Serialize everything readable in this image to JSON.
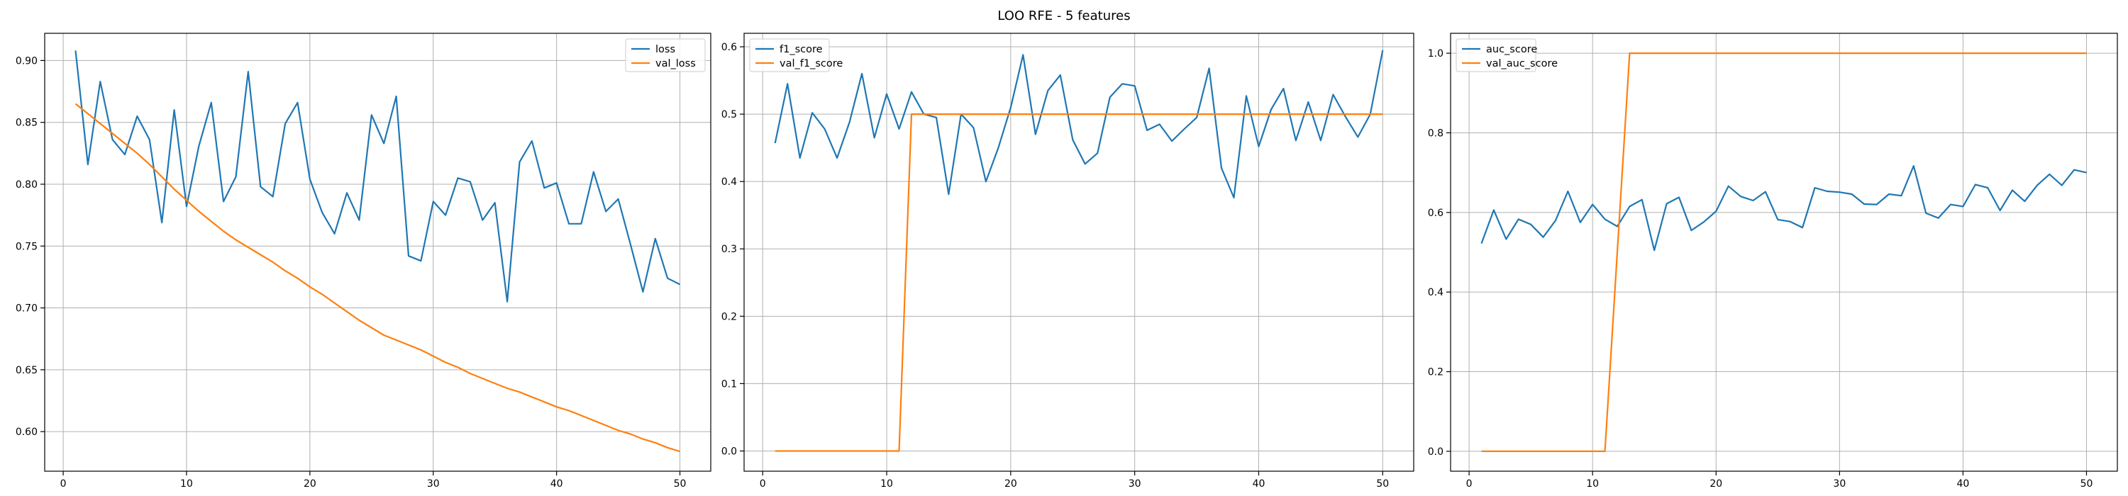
{
  "figure_title": "LOO RFE - 5 features",
  "colors": {
    "series_1": "#1f77b4",
    "series_2": "#ff7f0e",
    "grid": "#b0b0b0",
    "axes": "#000000"
  },
  "chart_data": [
    {
      "type": "line",
      "title": "",
      "xlabel": "",
      "ylabel": "",
      "grid": true,
      "legend": "top-right",
      "xlim": [
        -1.5,
        52.5
      ],
      "ylim": [
        0.568,
        0.922
      ],
      "xticks": [
        0,
        10,
        20,
        30,
        40,
        50
      ],
      "yticks": [
        0.6,
        0.65,
        0.7,
        0.75,
        0.8,
        0.85,
        0.9
      ],
      "ytick_labels": [
        "0.60",
        "0.65",
        "0.70",
        "0.75",
        "0.80",
        "0.85",
        "0.90"
      ],
      "x": [
        1,
        2,
        3,
        4,
        5,
        6,
        7,
        8,
        9,
        10,
        11,
        12,
        13,
        14,
        15,
        16,
        17,
        18,
        19,
        20,
        21,
        22,
        23,
        24,
        25,
        26,
        27,
        28,
        29,
        30,
        31,
        32,
        33,
        34,
        35,
        36,
        37,
        38,
        39,
        40,
        41,
        42,
        43,
        44,
        45,
        46,
        47,
        48,
        49,
        50
      ],
      "series": [
        {
          "name": "loss",
          "color": "#1f77b4",
          "values": [
            0.908,
            0.816,
            0.883,
            0.836,
            0.824,
            0.855,
            0.836,
            0.769,
            0.86,
            0.782,
            0.831,
            0.866,
            0.786,
            0.806,
            0.891,
            0.798,
            0.79,
            0.849,
            0.866,
            0.804,
            0.777,
            0.76,
            0.793,
            0.771,
            0.856,
            0.833,
            0.871,
            0.742,
            0.738,
            0.786,
            0.775,
            0.805,
            0.802,
            0.771,
            0.785,
            0.705,
            0.818,
            0.835,
            0.797,
            0.801,
            0.768,
            0.768,
            0.81,
            0.778,
            0.788,
            0.751,
            0.713,
            0.756,
            0.724,
            0.719
          ]
        },
        {
          "name": "val_loss",
          "color": "#ff7f0e",
          "values": [
            0.865,
            0.857,
            0.849,
            0.841,
            0.833,
            0.825,
            0.816,
            0.806,
            0.796,
            0.787,
            0.778,
            0.77,
            0.762,
            0.755,
            0.749,
            0.743,
            0.737,
            0.73,
            0.724,
            0.717,
            0.711,
            0.704,
            0.697,
            0.69,
            0.684,
            0.678,
            0.674,
            0.67,
            0.666,
            0.661,
            0.656,
            0.652,
            0.647,
            0.643,
            0.639,
            0.635,
            0.632,
            0.628,
            0.624,
            0.62,
            0.617,
            0.613,
            0.609,
            0.605,
            0.601,
            0.598,
            0.594,
            0.591,
            0.587,
            0.584
          ]
        }
      ]
    },
    {
      "type": "line",
      "title": "",
      "xlabel": "",
      "ylabel": "",
      "grid": true,
      "legend": "top-left",
      "xlim": [
        -1.5,
        52.5
      ],
      "ylim": [
        -0.03,
        0.62
      ],
      "xticks": [
        0,
        10,
        20,
        30,
        40,
        50
      ],
      "yticks": [
        0.0,
        0.1,
        0.2,
        0.3,
        0.4,
        0.5,
        0.6
      ],
      "ytick_labels": [
        "0.0",
        "0.1",
        "0.2",
        "0.3",
        "0.4",
        "0.5",
        "0.6"
      ],
      "x": [
        1,
        2,
        3,
        4,
        5,
        6,
        7,
        8,
        9,
        10,
        11,
        12,
        13,
        14,
        15,
        16,
        17,
        18,
        19,
        20,
        21,
        22,
        23,
        24,
        25,
        26,
        27,
        28,
        29,
        30,
        31,
        32,
        33,
        34,
        35,
        36,
        37,
        38,
        39,
        40,
        41,
        42,
        43,
        44,
        45,
        46,
        47,
        48,
        49,
        50
      ],
      "series": [
        {
          "name": "f1_score",
          "color": "#1f77b4",
          "values": [
            0.457,
            0.545,
            0.435,
            0.502,
            0.478,
            0.435,
            0.488,
            0.56,
            0.465,
            0.53,
            0.478,
            0.533,
            0.5,
            0.495,
            0.381,
            0.5,
            0.48,
            0.4,
            0.45,
            0.51,
            0.588,
            0.47,
            0.535,
            0.558,
            0.462,
            0.426,
            0.442,
            0.525,
            0.545,
            0.542,
            0.476,
            0.485,
            0.46,
            0.478,
            0.495,
            0.568,
            0.42,
            0.376,
            0.527,
            0.452,
            0.507,
            0.538,
            0.461,
            0.518,
            0.461,
            0.529,
            0.496,
            0.466,
            0.5,
            0.595
          ]
        },
        {
          "name": "val_f1_score",
          "color": "#ff7f0e",
          "values": [
            0,
            0,
            0,
            0,
            0,
            0,
            0,
            0,
            0,
            0,
            0,
            0.5,
            0.5,
            0.5,
            0.5,
            0.5,
            0.5,
            0.5,
            0.5,
            0.5,
            0.5,
            0.5,
            0.5,
            0.5,
            0.5,
            0.5,
            0.5,
            0.5,
            0.5,
            0.5,
            0.5,
            0.5,
            0.5,
            0.5,
            0.5,
            0.5,
            0.5,
            0.5,
            0.5,
            0.5,
            0.5,
            0.5,
            0.5,
            0.5,
            0.5,
            0.5,
            0.5,
            0.5,
            0.5,
            0.5
          ]
        }
      ]
    },
    {
      "type": "line",
      "title": "",
      "xlabel": "",
      "ylabel": "",
      "grid": true,
      "legend": "top-left",
      "xlim": [
        -1.5,
        52.5
      ],
      "ylim": [
        -0.05,
        1.05
      ],
      "xticks": [
        0,
        10,
        20,
        30,
        40,
        50
      ],
      "yticks": [
        0.0,
        0.2,
        0.4,
        0.6,
        0.8,
        1.0
      ],
      "ytick_labels": [
        "0.0",
        "0.2",
        "0.4",
        "0.6",
        "0.8",
        "1.0"
      ],
      "x": [
        1,
        2,
        3,
        4,
        5,
        6,
        7,
        8,
        9,
        10,
        11,
        12,
        13,
        14,
        15,
        16,
        17,
        18,
        19,
        20,
        21,
        22,
        23,
        24,
        25,
        26,
        27,
        28,
        29,
        30,
        31,
        32,
        33,
        34,
        35,
        36,
        37,
        38,
        39,
        40,
        41,
        42,
        43,
        44,
        45,
        46,
        47,
        48,
        49,
        50
      ],
      "series": [
        {
          "name": "auc_score",
          "color": "#1f77b4",
          "values": [
            0.522,
            0.606,
            0.533,
            0.583,
            0.57,
            0.538,
            0.58,
            0.653,
            0.575,
            0.62,
            0.583,
            0.565,
            0.615,
            0.632,
            0.505,
            0.622,
            0.638,
            0.555,
            0.576,
            0.603,
            0.666,
            0.64,
            0.63,
            0.652,
            0.582,
            0.577,
            0.562,
            0.662,
            0.653,
            0.651,
            0.646,
            0.621,
            0.62,
            0.646,
            0.642,
            0.717,
            0.598,
            0.586,
            0.62,
            0.615,
            0.67,
            0.662,
            0.605,
            0.656,
            0.628,
            0.668,
            0.696,
            0.668,
            0.707,
            0.7
          ]
        },
        {
          "name": "val_auc_score",
          "color": "#ff7f0e",
          "values": [
            0,
            0,
            0,
            0,
            0,
            0,
            0,
            0,
            0,
            0,
            0,
            0.5,
            1,
            1,
            1,
            1,
            1,
            1,
            1,
            1,
            1,
            1,
            1,
            1,
            1,
            1,
            1,
            1,
            1,
            1,
            1,
            1,
            1,
            1,
            1,
            1,
            1,
            1,
            1,
            1,
            1,
            1,
            1,
            1,
            1,
            1,
            1,
            1,
            1,
            1
          ]
        }
      ]
    }
  ]
}
